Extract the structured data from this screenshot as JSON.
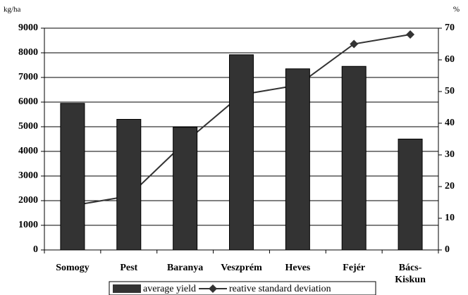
{
  "chart_data": {
    "type": "bar-line",
    "y_label": "kg/ha",
    "y2_label": "%",
    "categories": [
      "Somogy",
      "Pest",
      "Baranya",
      "Veszprém",
      "Heves",
      "Fejér",
      "Bács-Kiskun"
    ],
    "series": [
      {
        "name": "average yield",
        "type": "bar",
        "color": "#333333",
        "values": [
          5950,
          5300,
          4980,
          7920,
          7350,
          7450,
          4500
        ]
      },
      {
        "name": "reative standard deviation",
        "type": "line",
        "axis": "y2",
        "color": "#333333",
        "values": [
          14,
          17,
          34,
          49,
          52,
          65,
          68
        ]
      }
    ],
    "ylim": [
      0,
      9000
    ],
    "yticks": [
      0,
      1000,
      2000,
      3000,
      4000,
      5000,
      6000,
      7000,
      8000,
      9000
    ],
    "y2lim": [
      0,
      70
    ],
    "y2ticks": [
      0,
      10,
      20,
      30,
      40,
      50,
      60,
      70
    ],
    "grid": true,
    "legend": "bottom"
  }
}
